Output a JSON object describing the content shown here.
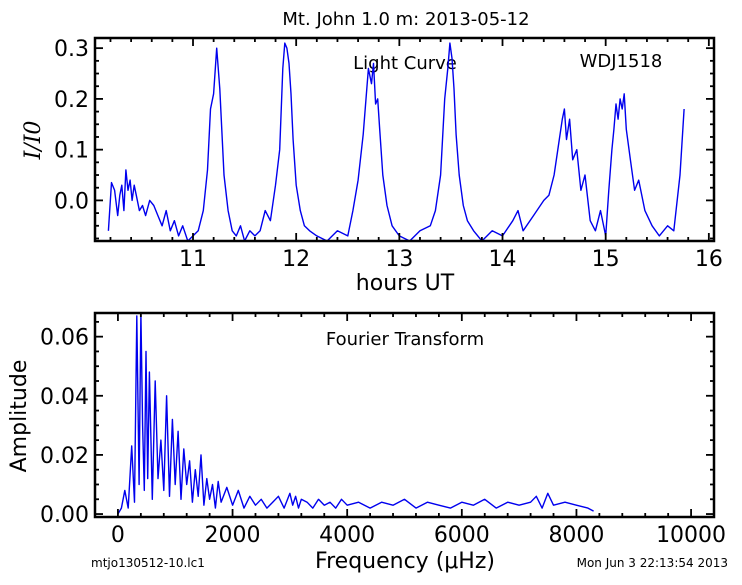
{
  "page_title": "Mt. John 1.0 m:  2013-05-12",
  "footer": {
    "left": "mtjo130512-10.lc1",
    "right": "Mon Jun  3 22:13:54 2013"
  },
  "colors": {
    "line": "#0000ee",
    "axes": "#000000"
  },
  "chart_data": [
    {
      "type": "line",
      "annotations": [
        "Light Curve",
        "WDJ1518"
      ],
      "xlabel": "hours UT",
      "ylabel": "I/I0",
      "xlim": [
        10.05,
        16.05
      ],
      "ylim": [
        -0.08,
        0.32
      ],
      "xticks": [
        11,
        12,
        13,
        14,
        15,
        16
      ],
      "yticks": [
        0.0,
        0.1,
        0.2,
        0.3
      ],
      "xtick_labels": [
        "11",
        "12",
        "13",
        "14",
        "15",
        "16"
      ],
      "ytick_labels": [
        "0.0",
        "0.1",
        "0.2",
        "0.3"
      ],
      "grid": false,
      "series": [
        {
          "x": [
            10.18,
            10.21,
            10.24,
            10.27,
            10.29,
            10.31,
            10.33,
            10.35,
            10.37,
            10.39,
            10.41,
            10.43,
            10.45,
            10.48,
            10.51,
            10.54,
            10.58,
            10.62,
            10.66,
            10.7,
            10.74,
            10.78,
            10.82,
            10.86,
            10.9,
            10.95,
            11.0,
            11.05,
            11.1,
            11.14,
            11.17,
            11.2,
            11.23,
            11.26,
            11.3,
            11.34,
            11.38,
            11.42,
            11.46,
            11.5,
            11.55,
            11.6,
            11.65,
            11.7,
            11.75,
            11.8,
            11.84,
            11.87,
            11.89,
            11.91,
            11.93,
            11.95,
            11.97,
            12.0,
            12.04,
            12.08,
            12.13,
            12.2,
            12.3,
            12.4,
            12.5,
            12.55,
            12.6,
            12.65,
            12.7,
            12.73,
            12.75,
            12.77,
            12.79,
            12.81,
            12.84,
            12.88,
            12.93,
            13.0,
            13.1,
            13.2,
            13.3,
            13.35,
            13.4,
            13.44,
            13.47,
            13.49,
            13.51,
            13.53,
            13.55,
            13.58,
            13.62,
            13.66,
            13.72,
            13.8,
            13.9,
            14.0,
            14.1,
            14.15,
            14.2,
            14.3,
            14.4,
            14.45,
            14.5,
            14.55,
            14.58,
            14.6,
            14.62,
            14.65,
            14.68,
            14.72,
            14.76,
            14.8,
            14.85,
            14.9,
            14.95,
            15.0,
            15.03,
            15.06,
            15.08,
            15.1,
            15.12,
            15.14,
            15.16,
            15.18,
            15.2,
            15.24,
            15.28,
            15.32,
            15.38,
            15.45,
            15.52,
            15.6,
            15.66,
            15.72,
            15.76
          ],
          "y": [
            -0.06,
            0.035,
            0.02,
            -0.03,
            0.01,
            0.03,
            -0.02,
            0.06,
            0.02,
            0.04,
            0.0,
            0.03,
            0.01,
            -0.02,
            -0.01,
            -0.03,
            0.0,
            -0.01,
            -0.03,
            -0.05,
            -0.02,
            -0.06,
            -0.04,
            -0.07,
            -0.05,
            -0.08,
            -0.07,
            -0.06,
            -0.02,
            0.06,
            0.18,
            0.21,
            0.3,
            0.22,
            0.05,
            -0.02,
            -0.06,
            -0.07,
            -0.05,
            -0.08,
            -0.06,
            -0.07,
            -0.06,
            -0.02,
            -0.04,
            0.03,
            0.1,
            0.26,
            0.31,
            0.3,
            0.27,
            0.21,
            0.12,
            0.03,
            -0.02,
            -0.05,
            -0.06,
            -0.07,
            -0.08,
            -0.06,
            -0.07,
            -0.02,
            0.04,
            0.13,
            0.26,
            0.23,
            0.27,
            0.19,
            0.2,
            0.14,
            0.05,
            -0.01,
            -0.05,
            -0.07,
            -0.08,
            -0.06,
            -0.05,
            -0.02,
            0.05,
            0.2,
            0.26,
            0.31,
            0.28,
            0.22,
            0.13,
            0.05,
            -0.01,
            -0.04,
            -0.06,
            -0.08,
            -0.06,
            -0.07,
            -0.04,
            -0.02,
            -0.06,
            -0.03,
            0.0,
            0.01,
            0.05,
            0.12,
            0.16,
            0.18,
            0.12,
            0.16,
            0.08,
            0.1,
            0.02,
            0.05,
            -0.04,
            -0.06,
            -0.02,
            -0.07,
            0.02,
            0.1,
            0.14,
            0.19,
            0.16,
            0.2,
            0.18,
            0.21,
            0.14,
            0.08,
            0.02,
            0.04,
            -0.02,
            -0.05,
            -0.07,
            -0.05,
            -0.06,
            0.05,
            0.18
          ]
        }
      ]
    },
    {
      "type": "line",
      "annotations": [
        "Fourier Transform"
      ],
      "xlabel": "Frequency (μHz)",
      "ylabel": "Amplitude",
      "xlim": [
        -400,
        10400
      ],
      "ylim": [
        -0.001,
        0.068
      ],
      "xticks": [
        0,
        2000,
        4000,
        6000,
        8000,
        10000
      ],
      "yticks": [
        0.0,
        0.02,
        0.04,
        0.06
      ],
      "xtick_labels": [
        "0",
        "2000",
        "4000",
        "6000",
        "8000",
        "10000"
      ],
      "ytick_labels": [
        "0.00",
        "0.02",
        "0.04",
        "0.06"
      ],
      "grid": false,
      "series": [
        {
          "x": [
            0,
            60,
            120,
            180,
            240,
            290,
            330,
            370,
            400,
            430,
            460,
            490,
            520,
            550,
            600,
            650,
            700,
            750,
            800,
            850,
            900,
            950,
            1000,
            1050,
            1100,
            1150,
            1200,
            1250,
            1300,
            1350,
            1400,
            1450,
            1500,
            1550,
            1600,
            1650,
            1700,
            1750,
            1800,
            1900,
            2000,
            2100,
            2200,
            2300,
            2400,
            2500,
            2600,
            2700,
            2800,
            2900,
            3000,
            3050,
            3100,
            3150,
            3200,
            3300,
            3400,
            3500,
            3600,
            3700,
            3800,
            3900,
            4000,
            4200,
            4400,
            4600,
            4800,
            5000,
            5200,
            5400,
            5600,
            5800,
            6000,
            6200,
            6400,
            6600,
            6800,
            7000,
            7200,
            7300,
            7400,
            7500,
            7600,
            7800,
            8000,
            8200,
            8300
          ],
          "y": [
            0.0,
            0.002,
            0.008,
            0.002,
            0.023,
            0.004,
            0.067,
            0.01,
            0.068,
            0.03,
            0.008,
            0.055,
            0.012,
            0.048,
            0.005,
            0.045,
            0.012,
            0.025,
            0.008,
            0.04,
            0.006,
            0.032,
            0.01,
            0.028,
            0.005,
            0.022,
            0.01,
            0.018,
            0.004,
            0.015,
            0.006,
            0.02,
            0.003,
            0.012,
            0.005,
            0.01,
            0.002,
            0.011,
            0.004,
            0.009,
            0.003,
            0.008,
            0.002,
            0.006,
            0.003,
            0.005,
            0.002,
            0.004,
            0.006,
            0.002,
            0.007,
            0.003,
            0.006,
            0.002,
            0.005,
            0.004,
            0.002,
            0.005,
            0.003,
            0.004,
            0.002,
            0.005,
            0.003,
            0.004,
            0.002,
            0.004,
            0.003,
            0.005,
            0.002,
            0.004,
            0.003,
            0.002,
            0.004,
            0.003,
            0.005,
            0.002,
            0.004,
            0.003,
            0.004,
            0.006,
            0.002,
            0.007,
            0.003,
            0.004,
            0.003,
            0.002,
            0.001
          ]
        }
      ]
    }
  ]
}
